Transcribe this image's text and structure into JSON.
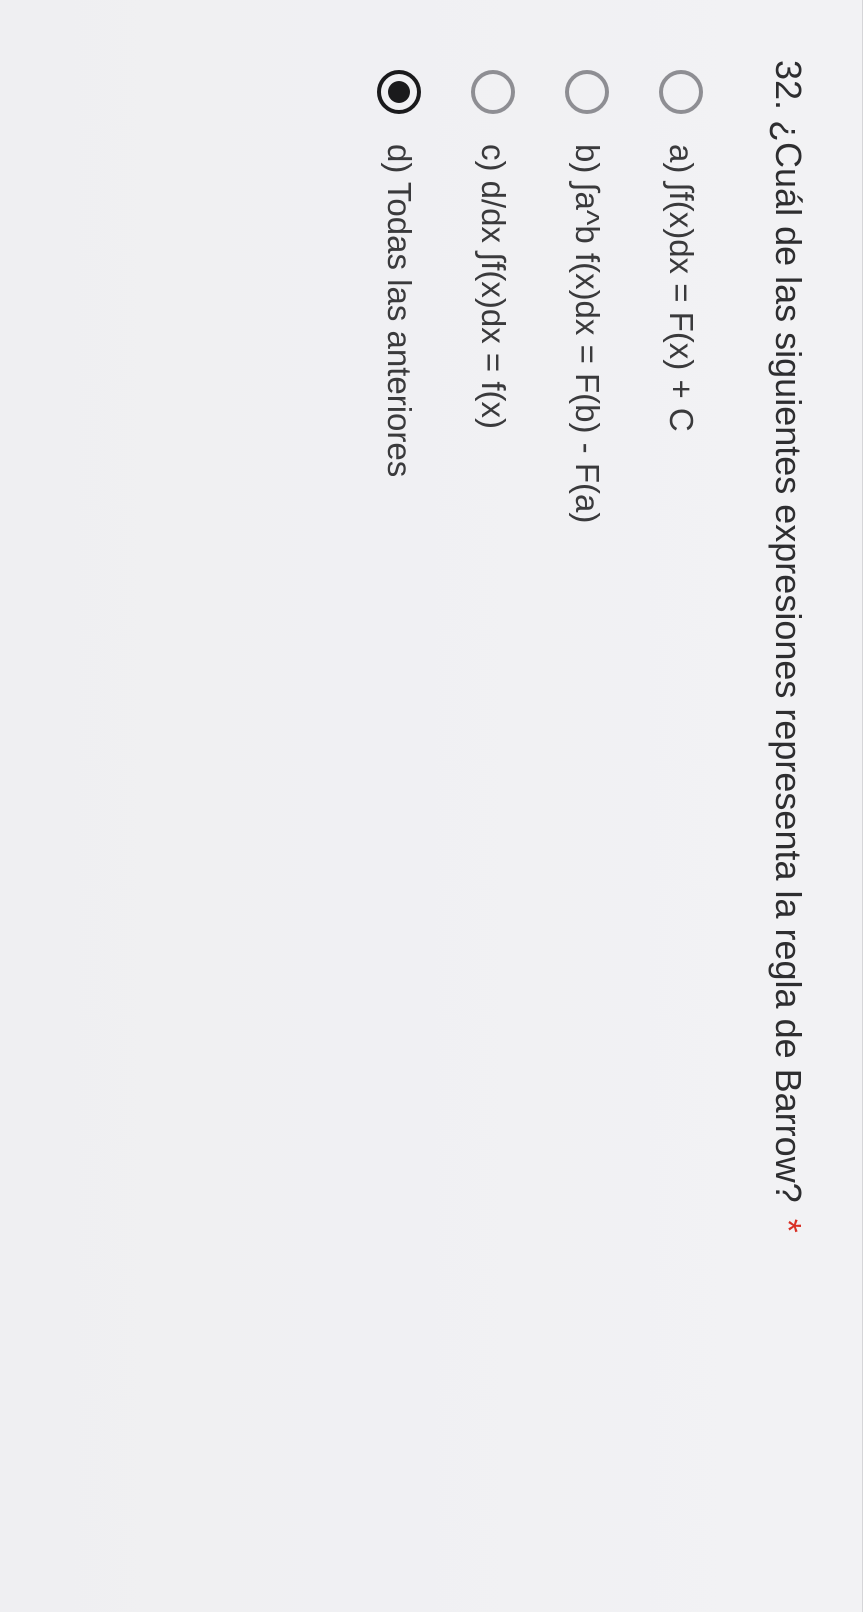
{
  "question": {
    "number": "32.",
    "text": "¿Cuál de las siguientes expresiones representa la regla de Barrow?",
    "required_marker": "*",
    "required_color": "#d93025",
    "text_color": "#2e2e30"
  },
  "options": [
    {
      "label": "a) ∫f(x)dx = F(x) + C",
      "selected": false
    },
    {
      "label": "b) ∫a^b f(x)dx = F(b) - F(a)",
      "selected": false
    },
    {
      "label": "c) d/dx ∫f(x)dx = f(x)",
      "selected": false
    },
    {
      "label": "d) Todas las anteriores",
      "selected": true
    }
  ],
  "styles": {
    "background_gradient_top": "#f2f2f4",
    "background_gradient_bottom": "#efeff2",
    "radio_unselected_border": "#8e8e93",
    "radio_selected_color": "#1a1a1c",
    "option_text_color": "#3a3a3c",
    "question_fontsize": 36,
    "option_fontsize": 33
  }
}
